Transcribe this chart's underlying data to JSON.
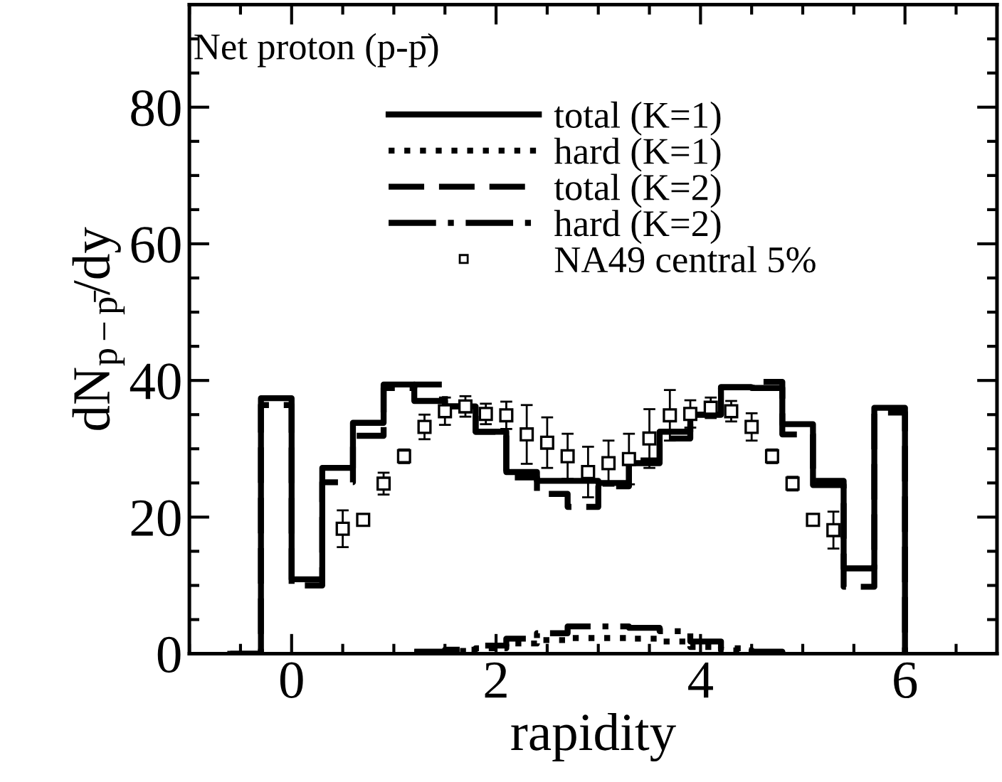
{
  "chart_data": {
    "type": "step",
    "xlabel": "rapidity",
    "ylabel": "dN$_{p−p̄}$/dy",
    "annotations": [
      "Net proton (p-p̄)"
    ],
    "xlim": [
      -1,
      6.9
    ],
    "xticks": [
      0,
      2,
      4,
      6
    ],
    "ylim": [
      0,
      95
    ],
    "yticks": [
      0,
      20,
      40,
      60,
      80
    ],
    "legend": "top right",
    "grid": false,
    "series": [
      {
        "name": "total (K=1)",
        "color": "#000000",
        "line_style": "solid",
        "x": [
          -0.6,
          -0.3,
          0,
          0.3,
          0.6,
          0.9,
          1.2,
          1.5,
          1.8,
          2.1,
          2.4,
          2.7,
          3.0,
          3.3,
          3.6,
          3.9,
          4.2,
          4.5,
          4.8,
          5.1,
          5.4,
          5.7,
          6.0
        ],
        "values": [
          0,
          37.4,
          10.9,
          27.2,
          33.8,
          39.4,
          37.0,
          36.2,
          32.5,
          26.6,
          25.3,
          25.3,
          25.0,
          27.9,
          32.5,
          35.0,
          39.0,
          38.9,
          33.6,
          24.7,
          12.5,
          36.0,
          0
        ]
      },
      {
        "name": "hard (K=1)",
        "color": "#000000",
        "line_style": "dotted",
        "x": [
          1.2,
          1.5,
          1.8,
          2.1,
          2.4,
          2.7,
          3.0,
          3.3,
          3.6,
          3.9,
          4.2,
          4.5,
          4.8
        ],
        "values": [
          0.2,
          0.4,
          0.8,
          1.5,
          2.0,
          2.3,
          2.3,
          2.2,
          1.8,
          1.0,
          0.5,
          0.2,
          0
        ]
      },
      {
        "name": "total (K=2)",
        "color": "#000000",
        "line_style": "dashed",
        "x": [
          -0.6,
          -0.3,
          0,
          0.3,
          0.6,
          0.9,
          1.2,
          1.5,
          1.8,
          2.1,
          2.4,
          2.7,
          3.0,
          3.3,
          3.6,
          3.9,
          4.2,
          4.5,
          4.8,
          5.1,
          5.4,
          5.7,
          6.0
        ],
        "values": [
          0,
          36.4,
          10.0,
          25.1,
          31.9,
          38.9,
          39.4,
          36.2,
          32.5,
          25.8,
          23.4,
          21.5,
          24.5,
          28.3,
          31.5,
          35.0,
          39.0,
          39.8,
          32.1,
          25.3,
          9.8,
          35.3,
          0
        ]
      },
      {
        "name": "hard (K=2)",
        "color": "#000000",
        "line_style": "dashdot",
        "x": [
          1.2,
          1.5,
          1.8,
          2.1,
          2.4,
          2.7,
          3.0,
          3.3,
          3.6,
          3.9,
          4.2,
          4.5,
          4.8
        ],
        "values": [
          0.3,
          0.6,
          1.2,
          2.2,
          3.0,
          4.0,
          4.0,
          3.8,
          3.3,
          1.8,
          0.8,
          0.3,
          0
        ]
      },
      {
        "name": "NA49 central 5%",
        "type": "scatter",
        "marker": "square",
        "color": "#000000",
        "x": [
          0.5,
          0.7,
          0.9,
          1.1,
          1.3,
          1.5,
          1.7,
          1.9,
          2.1,
          2.3,
          2.5,
          2.7,
          2.9,
          3.1,
          3.3,
          3.5,
          3.7,
          3.9,
          4.1,
          4.3,
          4.5,
          4.7,
          4.9,
          5.1,
          5.3
        ],
        "values": [
          18.3,
          19.6,
          24.9,
          28.9,
          33.2,
          35.5,
          36.2,
          35.1,
          34.9,
          32.1,
          30.9,
          28.9,
          26.6,
          27.9,
          28.5,
          31.5,
          34.9,
          35.1,
          36.0,
          35.5,
          33.2,
          28.9,
          24.9,
          19.6,
          18.1
        ],
        "errors": [
          2.7,
          0.6,
          1.6,
          1.0,
          1.8,
          2.0,
          1.5,
          1.5,
          2.0,
          4.3,
          3.7,
          3.3,
          3.7,
          3.3,
          3.7,
          4.3,
          3.7,
          2.0,
          1.5,
          1.5,
          2.0,
          1.0,
          1.0,
          0.8,
          2.7
        ]
      }
    ]
  }
}
